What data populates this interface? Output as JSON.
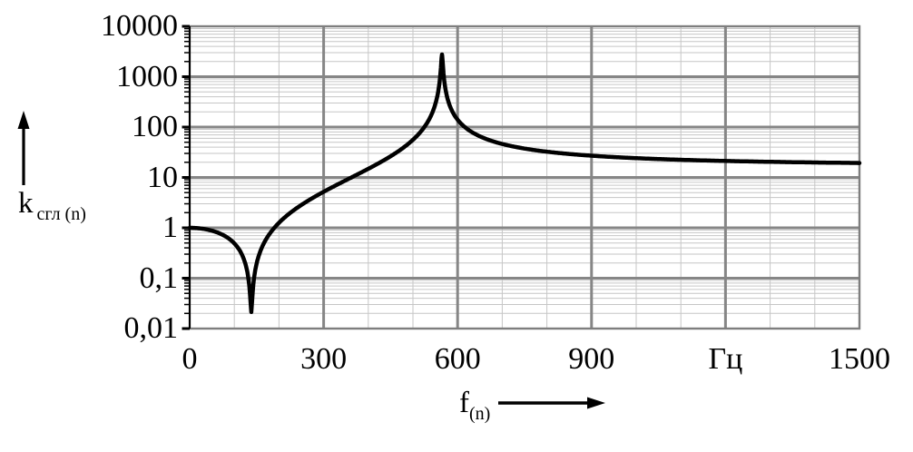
{
  "axes": {
    "y": {
      "label_main": "k",
      "label_sub": "сгл (n)",
      "scale": "log",
      "min": 0.01,
      "max": 10000,
      "tick_labels": [
        "10000",
        "1000",
        "100",
        "10",
        "1",
        "0,1",
        "0,01"
      ]
    },
    "x": {
      "label_main": "f",
      "label_sub": "(n)",
      "unit": "Гц",
      "min": 0,
      "max": 1500,
      "minor_step": 100,
      "major_step": 300,
      "tick_values": [
        0,
        300,
        600,
        900,
        1200,
        1500
      ],
      "tick_labels": [
        "0",
        "300",
        "600",
        "900",
        "Гц",
        "1500"
      ]
    }
  },
  "chart_data": {
    "type": "line",
    "title": "",
    "xlabel": "f(n), Гц",
    "ylabel": "k сгл (n)",
    "x_range": [
      0,
      1500
    ],
    "y_range": [
      0.01,
      10000
    ],
    "y_scale": "log",
    "x_ticks": [
      0,
      300,
      600,
      900,
      1200,
      1500
    ],
    "x_tick_labels": [
      "0",
      "300",
      "600",
      "900",
      "Гц",
      "1500"
    ],
    "y_ticks": [
      10000,
      1000,
      100,
      10,
      1,
      0.1,
      0.01
    ],
    "y_tick_labels": [
      "10000",
      "1000",
      "100",
      "10",
      "1",
      "0,1",
      "0,01"
    ],
    "grid": {
      "minor_x_step_hz": 100,
      "major_x_step_hz": 300,
      "log_minor_y": true
    },
    "colors": {
      "curve": "#000000",
      "major_grid": "#868686",
      "minor_grid": "#c6c6c6",
      "frame": "#7e7e7e",
      "axis": "#000000"
    },
    "series": [
      {
        "name": "k сгл (n)",
        "model": {
          "type": "notch-plus-resonance",
          "f_notch_hz": 138,
          "f_peak_hz": 565,
          "q_notch": 50,
          "q_peak": 175
        },
        "samples": [
          [
            0,
            1
          ],
          [
            50,
            0.87
          ],
          [
            100,
            0.47
          ],
          [
            138,
            0.021
          ],
          [
            170,
            0.64
          ],
          [
            200,
            1.37
          ],
          [
            250,
            3.0
          ],
          [
            300,
            5.5
          ],
          [
            400,
            15.6
          ],
          [
            500,
            58
          ],
          [
            550,
            296
          ],
          [
            565,
            2760
          ],
          [
            580,
            324
          ],
          [
            600,
            146
          ],
          [
            700,
            48
          ],
          [
            800,
            34
          ],
          [
            900,
            28
          ],
          [
            1000,
            25
          ],
          [
            1100,
            23.4
          ],
          [
            1200,
            22.2
          ],
          [
            1300,
            21.4
          ],
          [
            1400,
            20.7
          ],
          [
            1500,
            20.2
          ]
        ]
      }
    ]
  }
}
